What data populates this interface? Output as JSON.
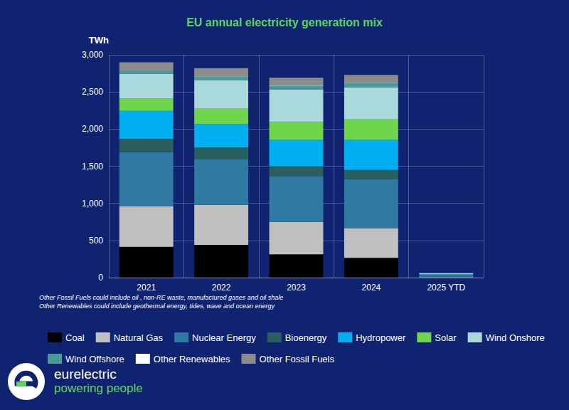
{
  "chart_data": {
    "type": "bar",
    "title": "EU annual electricity generation mix",
    "y_label": "TWh",
    "categories": [
      "2021",
      "2022",
      "2023",
      "2024",
      "2025 YTD"
    ],
    "series": [
      {
        "name": "Coal",
        "color": "#000000",
        "values": [
          415,
          440,
          315,
          265,
          5
        ]
      },
      {
        "name": "Natural Gas",
        "color": "#c0c0c0",
        "values": [
          545,
          540,
          435,
          400,
          8
        ]
      },
      {
        "name": "Nuclear Energy",
        "color": "#2f7aa3",
        "values": [
          730,
          610,
          615,
          660,
          20
        ]
      },
      {
        "name": "Bioenergy",
        "color": "#2a5f60",
        "values": [
          180,
          165,
          135,
          125,
          4
        ]
      },
      {
        "name": "Hydropower",
        "color": "#00b0f0",
        "values": [
          375,
          310,
          355,
          405,
          8
        ]
      },
      {
        "name": "Solar",
        "color": "#6fd64b",
        "values": [
          165,
          210,
          240,
          275,
          3
        ]
      },
      {
        "name": "Wind Onshore",
        "color": "#a9d9db",
        "values": [
          335,
          380,
          440,
          435,
          10
        ]
      },
      {
        "name": "Wind Offshore",
        "color": "#4a9b95",
        "values": [
          45,
          50,
          55,
          55,
          3
        ]
      },
      {
        "name": "Other Renewables",
        "color": "#ffffff",
        "values": [
          5,
          5,
          10,
          5,
          0
        ]
      },
      {
        "name": "Other Fossil Fuels",
        "color": "#8c8c8c",
        "values": [
          105,
          110,
          90,
          105,
          2
        ]
      }
    ],
    "ylim": [
      0,
      3000
    ],
    "yticks": [
      0,
      500,
      {
        "value": 1000,
        "label": "1,000"
      },
      {
        "value": 1500,
        "label": "1,500"
      },
      {
        "value": 2000,
        "label": "2,000"
      },
      {
        "value": 2500,
        "label": "2,500"
      },
      {
        "value": 3000,
        "label": "3,000"
      }
    ],
    "grid": true,
    "stacked": true,
    "legend": "bottom",
    "annotations": [
      "Other Fossil Fuels could include oil , non-RE waste, manufactured gases and oil shale",
      "Other Renewables could include geothermal energy, tides, wave and ocean energy"
    ]
  },
  "logo": {
    "name": "eurelectric",
    "tagline": "powering people"
  }
}
